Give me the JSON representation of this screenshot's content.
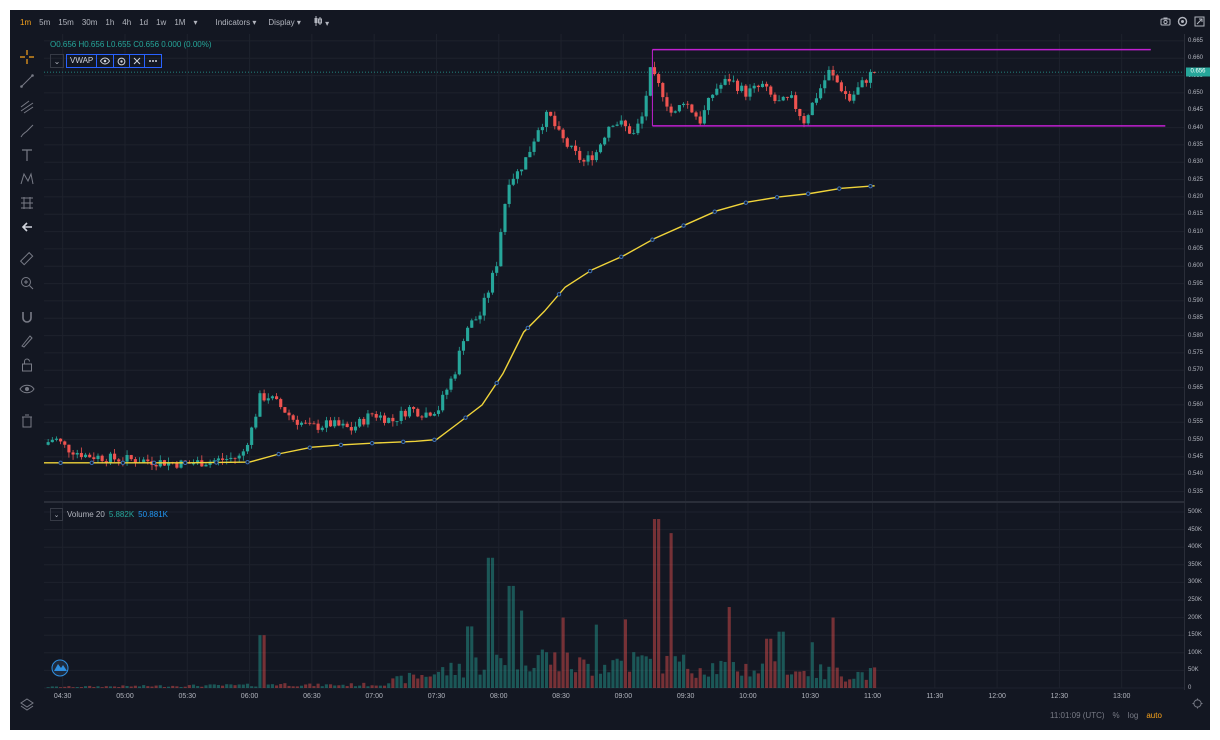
{
  "toolbar": {
    "timeframes": [
      "1m",
      "5m",
      "15m",
      "30m",
      "1h",
      "4h",
      "1d",
      "1w",
      "1M"
    ],
    "active_timeframe": "1m",
    "indicators_label": "Indicators",
    "display_label": "Display"
  },
  "legend": {
    "open": "O0.656",
    "high": "H0.656",
    "low": "L0.655",
    "close": "C0.656",
    "change": "0.000 (0.00%)"
  },
  "vwap": {
    "label": "VWAP"
  },
  "volume": {
    "label": "Volume 20",
    "value1": "5.882K",
    "value2": "50.881K"
  },
  "price_axis": {
    "labels": [
      "0.665",
      "0.660",
      "0.655",
      "0.650",
      "0.645",
      "0.640",
      "0.635",
      "0.630",
      "0.625",
      "0.620",
      "0.615",
      "0.610",
      "0.605",
      "0.600",
      "0.595",
      "0.590",
      "0.585",
      "0.580",
      "0.575",
      "0.570",
      "0.565",
      "0.560",
      "0.555",
      "0.550",
      "0.545",
      "0.540",
      "0.535"
    ],
    "current_price": "0.656"
  },
  "volume_axis": {
    "labels": [
      "500K",
      "450K",
      "400K",
      "350K",
      "300K",
      "250K",
      "200K",
      "150K",
      "100K",
      "50K",
      "0"
    ]
  },
  "time_axis": {
    "labels": [
      "04:30",
      "05:00",
      "05:30",
      "06:00",
      "06:30",
      "07:00",
      "07:30",
      "08:00",
      "08:30",
      "09:00",
      "09:30",
      "10:00",
      "10:30",
      "11:00",
      "11:30",
      "12:00",
      "12:30",
      "13:00"
    ]
  },
  "status": {
    "clock": "11:01:09 (UTC)",
    "percent": "%",
    "log": "log",
    "auto": "auto"
  },
  "colors": {
    "up": "#26a69a",
    "down": "#ef5350",
    "vwap": "#f0d43a",
    "level_line": "#c020d0",
    "accent": "#f7a21b",
    "background": "#131722"
  },
  "chart_data": {
    "type": "candlestick",
    "x_range": [
      "04:21",
      "13:30"
    ],
    "y_range": [
      0.532,
      0.667
    ],
    "resistance": {
      "price": 0.6625,
      "from": "09:14",
      "to": "13:14"
    },
    "support": {
      "price": 0.6405,
      "from": "09:14",
      "to": "13:21"
    },
    "current_price": 0.656,
    "price_path": [
      [
        "04:22",
        0.5485
      ],
      [
        "04:27",
        0.5505
      ],
      [
        "04:33",
        0.5475
      ],
      [
        "04:42",
        0.5455
      ],
      [
        "04:55",
        0.5445
      ],
      [
        "05:10",
        0.544
      ],
      [
        "05:30",
        0.543
      ],
      [
        "05:45",
        0.544
      ],
      [
        "05:57",
        0.545
      ],
      [
        "06:02",
        0.553
      ],
      [
        "06:06",
        0.562
      ],
      [
        "06:10",
        0.5625
      ],
      [
        "06:15",
        0.56
      ],
      [
        "06:22",
        0.556
      ],
      [
        "06:30",
        0.5535
      ],
      [
        "06:40",
        0.5545
      ],
      [
        "06:50",
        0.553
      ],
      [
        "07:00",
        0.5575
      ],
      [
        "07:10",
        0.5555
      ],
      [
        "07:18",
        0.559
      ],
      [
        "07:25",
        0.5575
      ],
      [
        "07:32",
        0.559
      ],
      [
        "07:40",
        0.57
      ],
      [
        "07:45",
        0.582
      ],
      [
        "07:52",
        0.586
      ],
      [
        "07:56",
        0.593
      ],
      [
        "08:00",
        0.601
      ],
      [
        "08:03",
        0.615
      ],
      [
        "08:06",
        0.625
      ],
      [
        "08:10",
        0.627
      ],
      [
        "08:15",
        0.632
      ],
      [
        "08:20",
        0.64
      ],
      [
        "08:25",
        0.644
      ],
      [
        "08:30",
        0.638
      ],
      [
        "08:35",
        0.634
      ],
      [
        "08:42",
        0.63
      ],
      [
        "08:48",
        0.633
      ],
      [
        "08:55",
        0.642
      ],
      [
        "09:00",
        0.641
      ],
      [
        "09:06",
        0.638
      ],
      [
        "09:10",
        0.643
      ],
      [
        "09:14",
        0.656
      ],
      [
        "09:20",
        0.65
      ],
      [
        "09:25",
        0.643
      ],
      [
        "09:30",
        0.648
      ],
      [
        "09:38",
        0.642
      ],
      [
        "09:45",
        0.651
      ],
      [
        "09:52",
        0.654
      ],
      [
        "10:00",
        0.65
      ],
      [
        "10:08",
        0.652
      ],
      [
        "10:15",
        0.647
      ],
      [
        "10:22",
        0.648
      ],
      [
        "10:28",
        0.642
      ],
      [
        "10:33",
        0.648
      ],
      [
        "10:40",
        0.656
      ],
      [
        "10:44",
        0.653
      ],
      [
        "10:50",
        0.648
      ],
      [
        "10:55",
        0.652
      ],
      [
        "11:01",
        0.656
      ]
    ],
    "vwap_path": [
      [
        "04:21",
        0.5433
      ],
      [
        "05:00",
        0.5433
      ],
      [
        "05:30",
        0.5433
      ],
      [
        "06:00",
        0.5435
      ],
      [
        "06:15",
        0.546
      ],
      [
        "06:30",
        0.5478
      ],
      [
        "06:45",
        0.5485
      ],
      [
        "07:00",
        0.549
      ],
      [
        "07:20",
        0.5495
      ],
      [
        "07:30",
        0.55
      ],
      [
        "07:40",
        0.5545
      ],
      [
        "07:52",
        0.56
      ],
      [
        "08:02",
        0.569
      ],
      [
        "08:12",
        0.581
      ],
      [
        "08:22",
        0.587
      ],
      [
        "08:32",
        0.594
      ],
      [
        "08:45",
        0.599
      ],
      [
        "09:00",
        0.603
      ],
      [
        "09:15",
        0.608
      ],
      [
        "09:30",
        0.612
      ],
      [
        "09:45",
        0.616
      ],
      [
        "10:00",
        0.6185
      ],
      [
        "10:15",
        0.62
      ],
      [
        "10:30",
        0.621
      ],
      [
        "10:45",
        0.6225
      ],
      [
        "11:01",
        0.6232
      ]
    ],
    "volume_profile": [
      [
        "04:21",
        3
      ],
      [
        "06:00",
        8
      ],
      [
        "06:10",
        12
      ],
      [
        "06:30",
        8
      ],
      [
        "07:00",
        10
      ],
      [
        "07:30",
        45
      ],
      [
        "07:45",
        60
      ],
      [
        "08:00",
        90
      ],
      [
        "08:15",
        100
      ],
      [
        "08:30",
        70
      ],
      [
        "08:45",
        60
      ],
      [
        "09:00",
        80
      ],
      [
        "09:15",
        70
      ],
      [
        "09:30",
        65
      ],
      [
        "09:45",
        60
      ],
      [
        "10:00",
        55
      ],
      [
        "10:15",
        50
      ],
      [
        "10:30",
        45
      ],
      [
        "10:45",
        40
      ],
      [
        "11:01",
        40
      ]
    ],
    "volume_spikes": [
      [
        "06:05",
        150
      ],
      [
        "07:45",
        175
      ],
      [
        "07:55",
        370
      ],
      [
        "08:05",
        290
      ],
      [
        "08:10",
        220
      ],
      [
        "08:30",
        200
      ],
      [
        "08:46",
        180
      ],
      [
        "09:00",
        195
      ],
      [
        "09:15",
        480
      ],
      [
        "09:22",
        440
      ],
      [
        "09:50",
        230
      ],
      [
        "10:09",
        140
      ],
      [
        "10:15",
        160
      ],
      [
        "10:30",
        130
      ],
      [
        "10:40",
        200
      ]
    ]
  }
}
